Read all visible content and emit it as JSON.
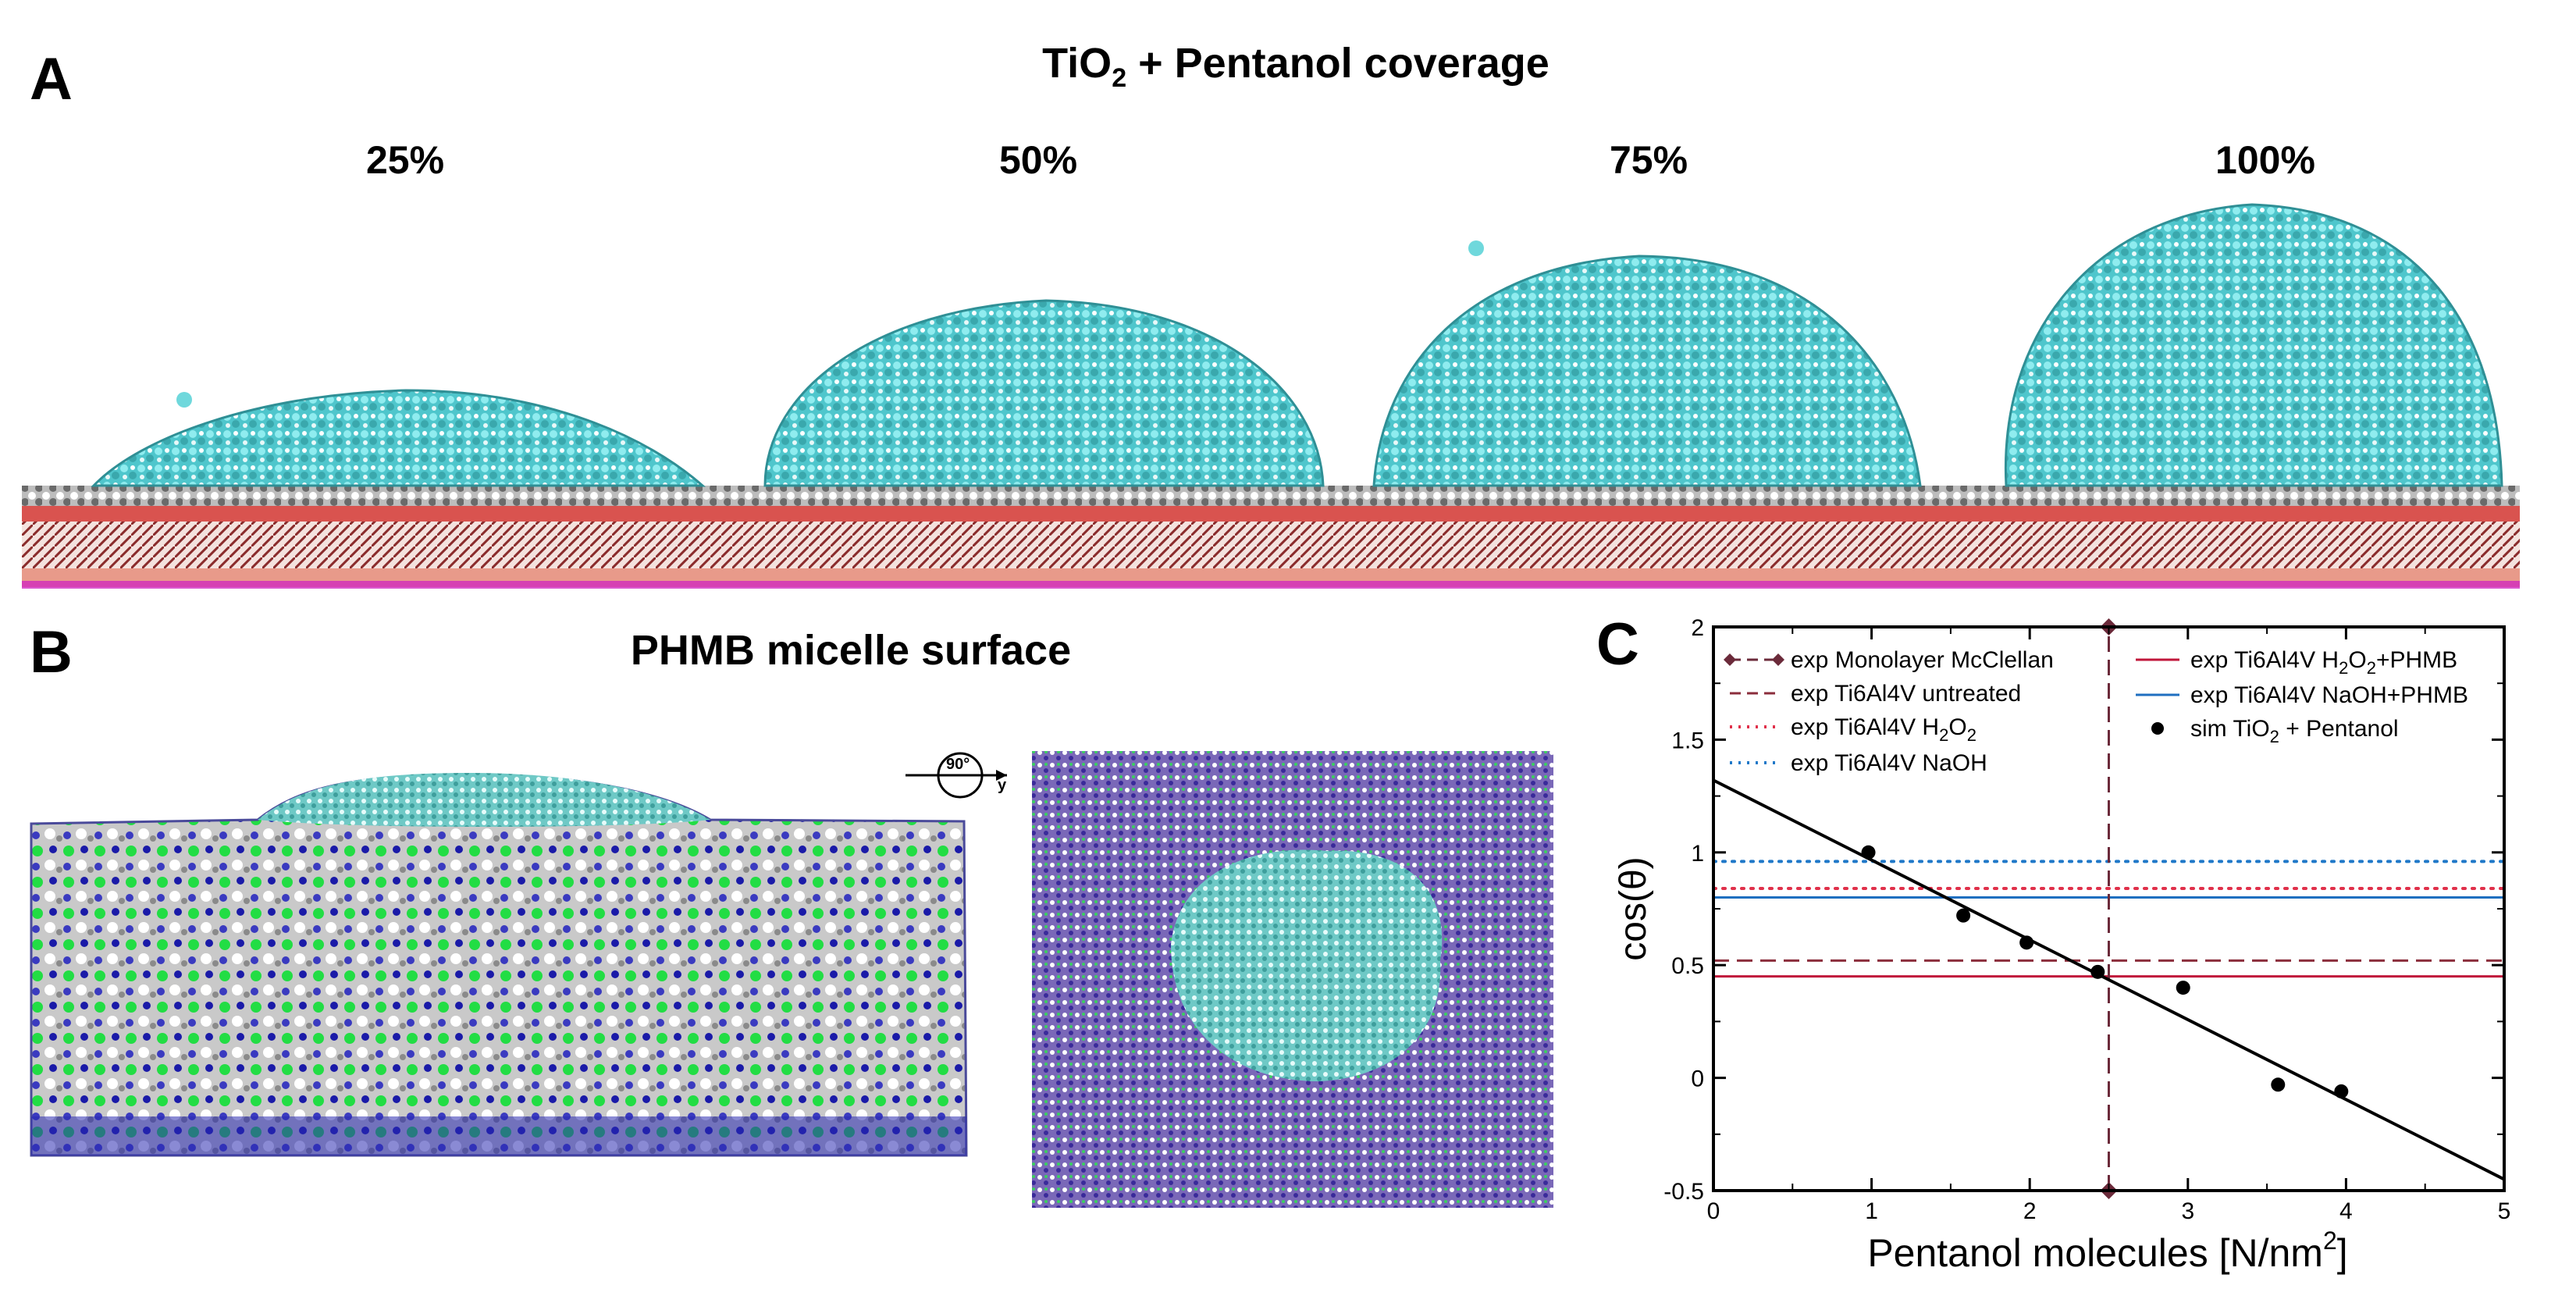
{
  "panels": {
    "A": {
      "letter": "A",
      "title_main": "TiO",
      "title_sub": "2",
      "title_rest": " + Pentanol coverage",
      "coverages": [
        "25%",
        "50%",
        "75%",
        "100%"
      ]
    },
    "B": {
      "letter": "B",
      "title": "PHMB micelle surface",
      "rotation_label": "90°",
      "rotation_axis": "y"
    },
    "C": {
      "letter": "C"
    }
  },
  "colors": {
    "water_cyan": "#5fd3d8",
    "slab_red": "#c0392b",
    "slab_pink": "#e8a0a0",
    "slab_magenta": "#d020c0",
    "phmb_blue": "#1a1aa8",
    "phmb_green": "#22dd44",
    "phmb_grey": "#b8b8b8",
    "surface_purple": "#7a68b8"
  },
  "chart_data": {
    "type": "scatter",
    "xlabel_main": "Pentanol molecules [N/nm",
    "xlabel_sup": "2",
    "xlabel_end": "]",
    "ylabel": "cos(θ)",
    "xlim": [
      0,
      5
    ],
    "ylim": [
      -0.5,
      2
    ],
    "xticks": [
      "0",
      "1",
      "2",
      "3",
      "4",
      "5"
    ],
    "yticks": [
      "-0.5",
      "0",
      "0.5",
      "1",
      "1.5",
      "2"
    ],
    "simulation_points": {
      "name": "sim TiO2 + Pentanol",
      "x": [
        0.98,
        1.58,
        1.98,
        2.43,
        2.97,
        3.57,
        3.97
      ],
      "y": [
        1.0,
        0.72,
        0.6,
        0.47,
        0.4,
        -0.03,
        -0.06
      ]
    },
    "fit_line": {
      "x": [
        0,
        5
      ],
      "y": [
        1.32,
        -0.45
      ]
    },
    "reference_lines": [
      {
        "name": "exp Ti6Al4V untreated",
        "y": 0.52,
        "style": "dashed",
        "color": "#8b2e3c"
      },
      {
        "name": "exp Ti6Al4V H2O2",
        "y": 0.84,
        "style": "dotted",
        "color": "#e0304a"
      },
      {
        "name": "exp Ti6Al4V NaOH",
        "y": 0.96,
        "style": "dotted",
        "color": "#1f78c8"
      },
      {
        "name": "exp Ti6Al4V H2O2+PHMB",
        "y": 0.45,
        "style": "solid",
        "color": "#c0163a"
      },
      {
        "name": "exp Ti6Al4V NaOH+PHMB",
        "y": 0.8,
        "style": "solid",
        "color": "#1f6fc0"
      }
    ],
    "monolayer": {
      "name": "exp Monolayer McClellan",
      "x": 2.5,
      "y": [
        -0.5,
        2
      ],
      "color": "#6b2a3a"
    },
    "legend_left": [
      {
        "text": "exp Monolayer McClellan",
        "sub": ""
      },
      {
        "text": "exp Ti6Al4V untreated",
        "sub": ""
      },
      {
        "text": "exp Ti6Al4V H",
        "sub": "2",
        "text2": "O",
        "sub2": "2"
      },
      {
        "text": "exp Ti6Al4V NaOH",
        "sub": ""
      }
    ],
    "legend_right": [
      {
        "text": "exp Ti6Al4V H",
        "sub": "2",
        "text2": "O",
        "sub2": "2",
        "text3": "+PHMB"
      },
      {
        "text": "exp Ti6Al4V NaOH+PHMB",
        "sub": ""
      },
      {
        "text": "sim TiO",
        "sub": "2",
        "text2": " + Pentanol"
      }
    ]
  }
}
